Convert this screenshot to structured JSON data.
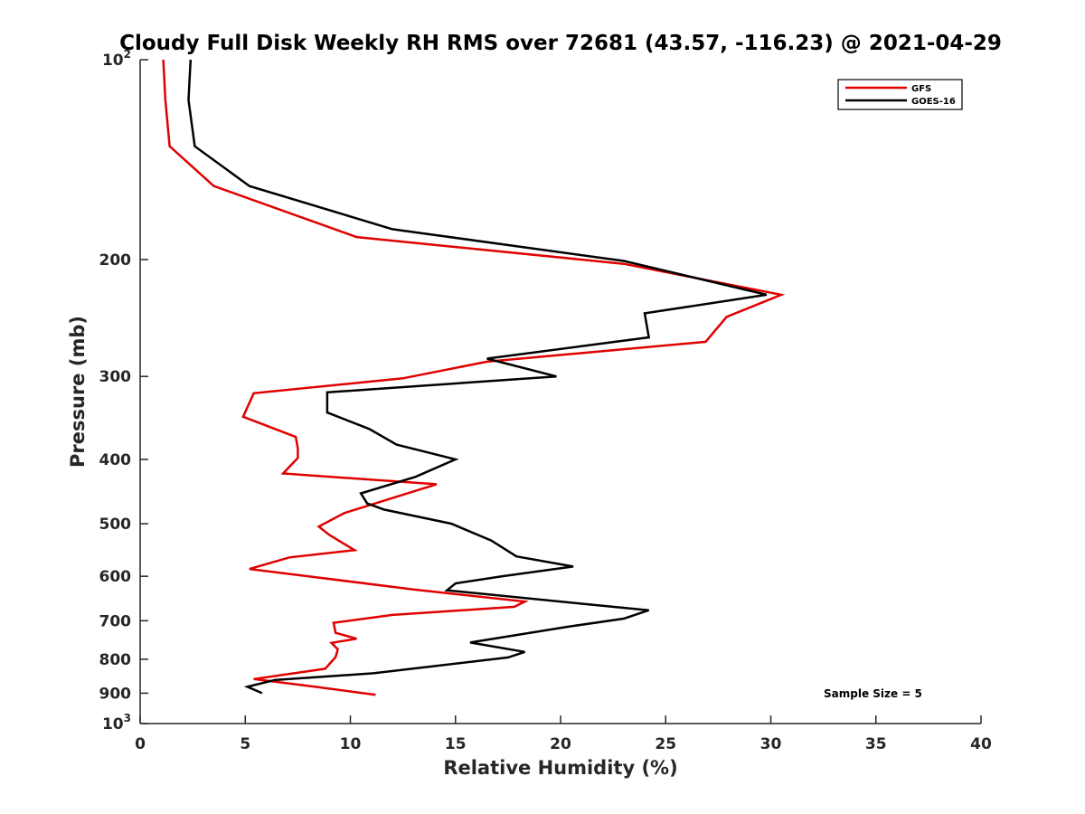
{
  "chart_data": {
    "type": "line",
    "title": "Cloudy Full Disk Weekly RH RMS over 72681 (43.57, -116.23) @ 2021-04-29",
    "xlabel": "Relative Humidity (%)",
    "ylabel": "Pressure (mb)",
    "xlim": [
      0,
      40
    ],
    "ylim": [
      100,
      1000
    ],
    "yscale": "log",
    "y_reversed": true,
    "xticks": [
      0,
      5,
      10,
      15,
      20,
      25,
      30,
      35,
      40
    ],
    "xtick_labels": [
      "0",
      "5",
      "10",
      "15",
      "20",
      "25",
      "30",
      "35",
      "40"
    ],
    "yticks": [
      100,
      200,
      300,
      400,
      500,
      600,
      700,
      800,
      900,
      1000
    ],
    "ytick_labels": [
      {
        "base": "10",
        "sup": "2"
      },
      {
        "base": "200",
        "sup": ""
      },
      {
        "base": "300",
        "sup": ""
      },
      {
        "base": "400",
        "sup": ""
      },
      {
        "base": "500",
        "sup": ""
      },
      {
        "base": "600",
        "sup": ""
      },
      {
        "base": "700",
        "sup": ""
      },
      {
        "base": "800",
        "sup": ""
      },
      {
        "base": "900",
        "sup": ""
      },
      {
        "base": "10",
        "sup": "3"
      }
    ],
    "grid": false,
    "legend_position": "top-right",
    "annotation": "Sample Size = 5",
    "series": [
      {
        "name": "GFS",
        "color": "#e00000",
        "points": [
          [
            1.1,
            100
          ],
          [
            1.2,
            115
          ],
          [
            1.4,
            135
          ],
          [
            3.5,
            155
          ],
          [
            10.3,
            185
          ],
          [
            23.0,
            203
          ],
          [
            30.5,
            226
          ],
          [
            27.9,
            244
          ],
          [
            26.9,
            266
          ],
          [
            16.5,
            285
          ],
          [
            12.5,
            302
          ],
          [
            5.4,
            318
          ],
          [
            4.9,
            345
          ],
          [
            7.4,
            370
          ],
          [
            7.5,
            385
          ],
          [
            7.5,
            398
          ],
          [
            6.8,
            420
          ],
          [
            14.1,
            436
          ],
          [
            9.7,
            482
          ],
          [
            8.5,
            505
          ],
          [
            9.0,
            520
          ],
          [
            10.2,
            548
          ],
          [
            7.1,
            562
          ],
          [
            5.2,
            585
          ],
          [
            13.0,
            628
          ],
          [
            18.3,
            655
          ],
          [
            17.8,
            667
          ],
          [
            12.0,
            686
          ],
          [
            9.2,
            705
          ],
          [
            9.3,
            730
          ],
          [
            10.3,
            745
          ],
          [
            9.1,
            756
          ],
          [
            9.4,
            773
          ],
          [
            9.3,
            794
          ],
          [
            8.8,
            827
          ],
          [
            5.4,
            857
          ],
          [
            8.3,
            880
          ],
          [
            11.2,
            905
          ]
        ]
      },
      {
        "name": "GOES-16",
        "color": "#000000",
        "points": [
          [
            2.4,
            100
          ],
          [
            2.3,
            115
          ],
          [
            2.6,
            135
          ],
          [
            5.2,
            155
          ],
          [
            12.0,
            180
          ],
          [
            23.0,
            201
          ],
          [
            29.8,
            226
          ],
          [
            24.0,
            241
          ],
          [
            24.2,
            262
          ],
          [
            16.5,
            282
          ],
          [
            19.8,
            300
          ],
          [
            8.9,
            317
          ],
          [
            8.9,
            340
          ],
          [
            10.9,
            360
          ],
          [
            12.2,
            380
          ],
          [
            15.0,
            400
          ],
          [
            13.1,
            425
          ],
          [
            10.5,
            450
          ],
          [
            10.8,
            466
          ],
          [
            11.6,
            476
          ],
          [
            14.8,
            500
          ],
          [
            16.7,
            530
          ],
          [
            17.9,
            560
          ],
          [
            20.6,
            580
          ],
          [
            17.2,
            600
          ],
          [
            15.0,
            615
          ],
          [
            14.6,
            630
          ],
          [
            21.0,
            660
          ],
          [
            24.2,
            675
          ],
          [
            23.0,
            695
          ],
          [
            20.3,
            715
          ],
          [
            15.7,
            755
          ],
          [
            18.3,
            780
          ],
          [
            17.5,
            795
          ],
          [
            11.1,
            840
          ],
          [
            6.4,
            860
          ],
          [
            5.1,
            880
          ],
          [
            5.8,
            900
          ]
        ]
      }
    ]
  }
}
